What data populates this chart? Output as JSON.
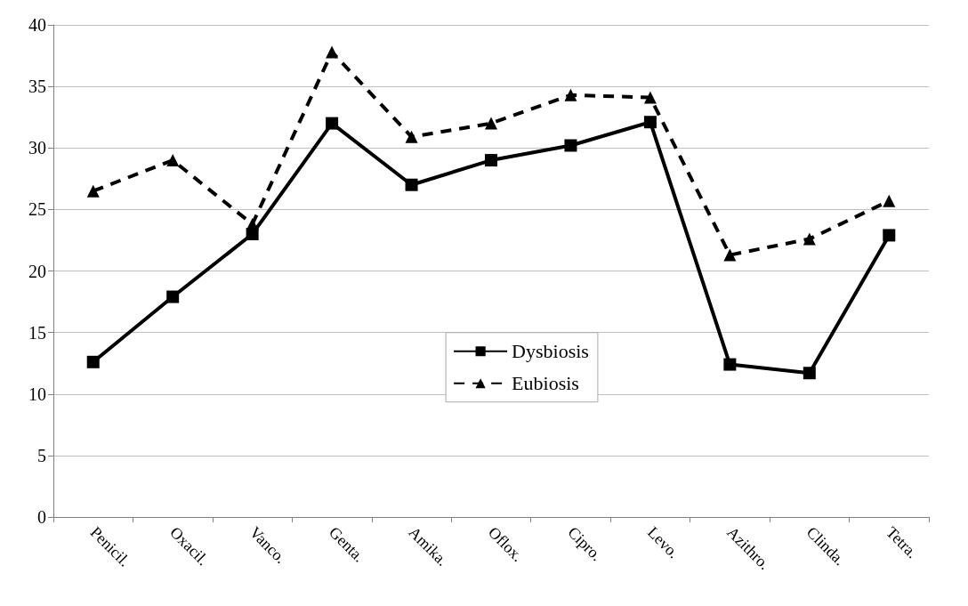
{
  "chart_data": {
    "type": "line",
    "categories": [
      "Penicil.",
      "Oxacil.",
      "Vanco.",
      "Genta.",
      "Amika.",
      "Oflox.",
      "Cipro.",
      "Levo.",
      "Azithro.",
      "Clinda.",
      "Tetra."
    ],
    "series": [
      {
        "name": "Dysbiosis",
        "color": "#000000",
        "marker": "square",
        "line_style": "solid",
        "values": [
          12.6,
          17.9,
          23,
          32,
          27,
          29,
          30.2,
          32.1,
          12.4,
          11.7,
          22.9
        ]
      },
      {
        "name": "Eubiosis",
        "color": "#000000",
        "marker": "triangle",
        "line_style": "dashed",
        "values": [
          26.5,
          29,
          23.8,
          37.8,
          30.9,
          32,
          34.3,
          34.1,
          21.3,
          22.6,
          25.7
        ]
      }
    ],
    "ylim": [
      0,
      40
    ],
    "yticks": [
      0,
      5,
      10,
      15,
      20,
      25,
      30,
      35,
      40
    ],
    "grid": "y",
    "legend": "center"
  }
}
